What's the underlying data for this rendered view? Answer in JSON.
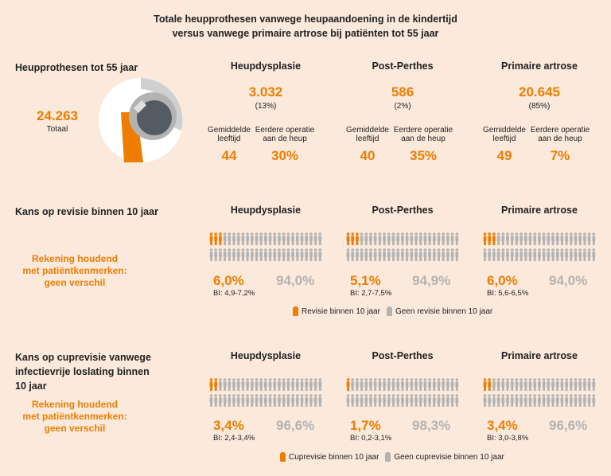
{
  "title_line1": "Totale heupprothesen vanwege heupaandoening in de kindertijd",
  "title_line2": "versus vanwege primaire artrose bij patiënten tot 55 jaar",
  "colors": {
    "orange": "#ee7d00",
    "grey": "#b3b3b3",
    "background": "#fbe9dc"
  },
  "section1": {
    "heading": "Heupprothesen tot 55 jaar",
    "total_value": "24.263",
    "total_label": "Totaal",
    "icon": "hip-prosthesis-icon",
    "col_age_label_1": "Gemiddelde",
    "col_age_label_2": "leeftijd",
    "col_op_label_1": "Eerdere operatie",
    "col_op_label_2": "aan de heup",
    "groups": [
      {
        "name": "Heupdysplasie",
        "count": "3.032",
        "pct": "(13%)",
        "age": "44",
        "prior_op": "30%"
      },
      {
        "name": "Post-Perthes",
        "count": "586",
        "pct": "(2%)",
        "age": "40",
        "prior_op": "35%"
      },
      {
        "name": "Primaire artrose",
        "count": "20.645",
        "pct": "(85%)",
        "age": "49",
        "prior_op": "7%"
      }
    ]
  },
  "section2": {
    "heading": "Kans op revisie binnen 10 jaar",
    "note_1": "Rekening houdend",
    "note_2": "met patiëntkenmerken:",
    "note_3": "geen verschil",
    "legend_orange": "Revisie binnen 10 jaar",
    "legend_grey": "Geen revisie binnen 10 jaar"
  },
  "section3": {
    "heading_1": "Kans op cuprevisie vanwege",
    "heading_2": "infectievrije loslating binnen",
    "heading_3": "10 jaar",
    "note_1": "Rekening houdend",
    "note_2": "met patiëntkenmerken:",
    "note_3": "geen verschil",
    "legend_orange": "Cuprevisie binnen 10 jaar",
    "legend_grey": "Geen cuprevisie binnen 10 jaar"
  },
  "chart_data": [
    {
      "type": "pie",
      "title": "Heupprothesen tot 55 jaar",
      "categories": [
        "Heupdysplasie",
        "Post-Perthes",
        "Primaire artrose"
      ],
      "values": [
        3032,
        586,
        20645
      ],
      "total": 24263
    },
    {
      "type": "bar",
      "title": "Kans op revisie binnen 10 jaar",
      "categories": [
        "Heupdysplasie",
        "Post-Perthes",
        "Primaire artrose"
      ],
      "series": [
        {
          "name": "Revisie binnen 10 jaar",
          "values": [
            6.0,
            5.1,
            6.0
          ],
          "labels": [
            "6,0%",
            "5,1%",
            "6,0%"
          ]
        },
        {
          "name": "Geen revisie binnen 10 jaar",
          "values": [
            94.0,
            94.9,
            94.0
          ],
          "labels": [
            "94,0%",
            "94,9%",
            "94,0%"
          ]
        }
      ],
      "ci": [
        "BI: 4,9-7,2%",
        "BI: 2,7-7,5%",
        "BI: 5,6-6,5%"
      ]
    },
    {
      "type": "bar",
      "title": "Kans op cuprevisie vanwege infectievrije loslating binnen 10 jaar",
      "categories": [
        "Heupdysplasie",
        "Post-Perthes",
        "Primaire artrose"
      ],
      "series": [
        {
          "name": "Cuprevisie binnen 10 jaar",
          "values": [
            3.4,
            1.7,
            3.4
          ],
          "labels": [
            "3,4%",
            "1,7%",
            "3,4%"
          ]
        },
        {
          "name": "Geen cuprevisie binnen 10 jaar",
          "values": [
            96.6,
            98.3,
            96.6
          ],
          "labels": [
            "96,6%",
            "98,3%",
            "96,6%"
          ]
        }
      ],
      "ci": [
        "BI: 2,4-3,4%",
        "BI: 0,2-3,1%",
        "BI: 3,0-3,8%"
      ]
    }
  ]
}
